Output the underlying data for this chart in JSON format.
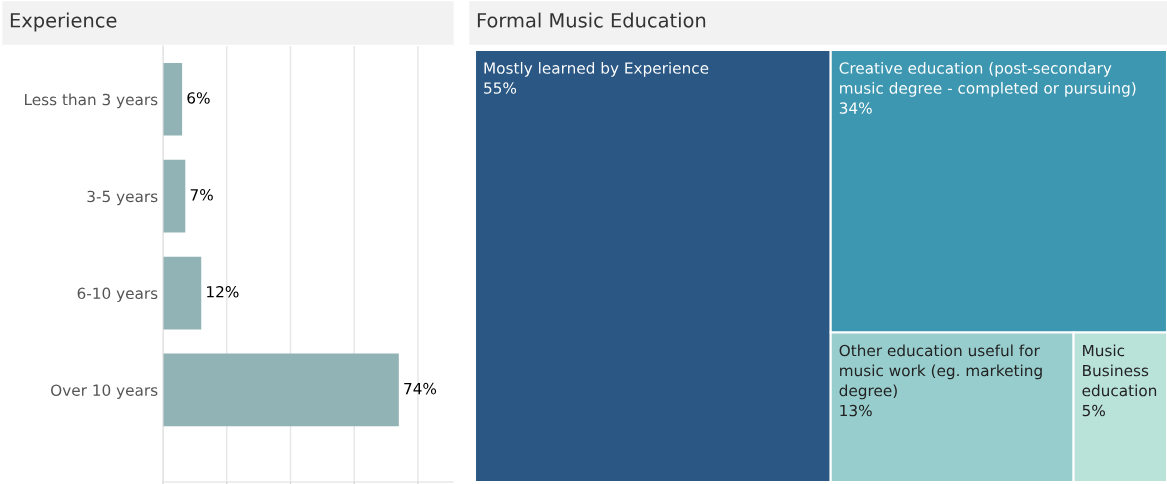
{
  "chart_data": [
    {
      "type": "bar",
      "orientation": "horizontal",
      "title": "Experience",
      "categories": [
        "Less than 3 years",
        "3-5 years",
        "6-10 years",
        "Over 10 years"
      ],
      "values": [
        6,
        7,
        12,
        74
      ],
      "value_labels": [
        "6%",
        "7%",
        "12%",
        "74%"
      ],
      "color": "#91b3b6",
      "xlim": [
        0,
        91
      ],
      "xticks": [
        {
          "value": 0,
          "label": null
        },
        {
          "value": 20,
          "label": null
        },
        {
          "value": 40,
          "label": null
        },
        {
          "value": 60,
          "label": null
        },
        {
          "value": 80,
          "label": null
        }
      ],
      "grid": "x",
      "tick_labels": "y",
      "legend": false
    },
    {
      "type": "other",
      "title": "Formal Music Education",
      "categories": [
        "Mostly learned by Experience",
        "Creative education (post-secondary music degree - completed or pursuing)",
        "Other education useful for music work (eg. marketing degree)",
        "Music Business education"
      ],
      "values": [
        55,
        34,
        13,
        5
      ],
      "value_labels": [
        "55%",
        "34%",
        "13%",
        "5%"
      ],
      "colors": [
        "#2a5783",
        "#3e97b1",
        "#98cdcd",
        "#b9e2d9"
      ]
    }
  ]
}
